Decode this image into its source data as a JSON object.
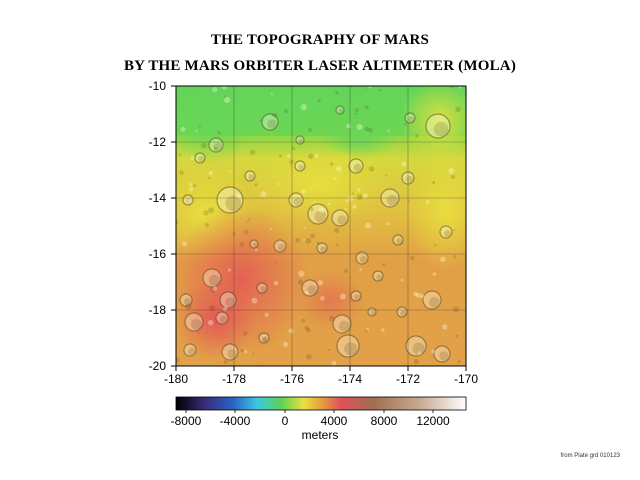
{
  "title_line1": "THE TOPOGRAPHY OF MARS",
  "title_line2": "BY THE MARS ORBITER LASER ALTIMETER (MOLA)",
  "map": {
    "y_ticks": [
      "-10",
      "-12",
      "-14",
      "-16",
      "-18",
      "-20"
    ],
    "x_ticks": [
      "-180",
      "-178",
      "-176",
      "-174",
      "-172",
      "-170"
    ],
    "x_range": [
      -180,
      -170
    ],
    "y_range": [
      -20,
      -10
    ],
    "grid": true
  },
  "colorbar": {
    "ticks": [
      "-8000",
      "-4000",
      "0",
      "4000",
      "8000",
      "12000"
    ],
    "label": "meters",
    "colors": [
      "#000000",
      "#3a2b7a",
      "#2a66c8",
      "#3cc8e0",
      "#5ad25a",
      "#e8e03c",
      "#e8a040",
      "#e0505a",
      "#a07050",
      "#c8a890",
      "#ffffff"
    ]
  },
  "source_note": "from Plate grd 010123"
}
